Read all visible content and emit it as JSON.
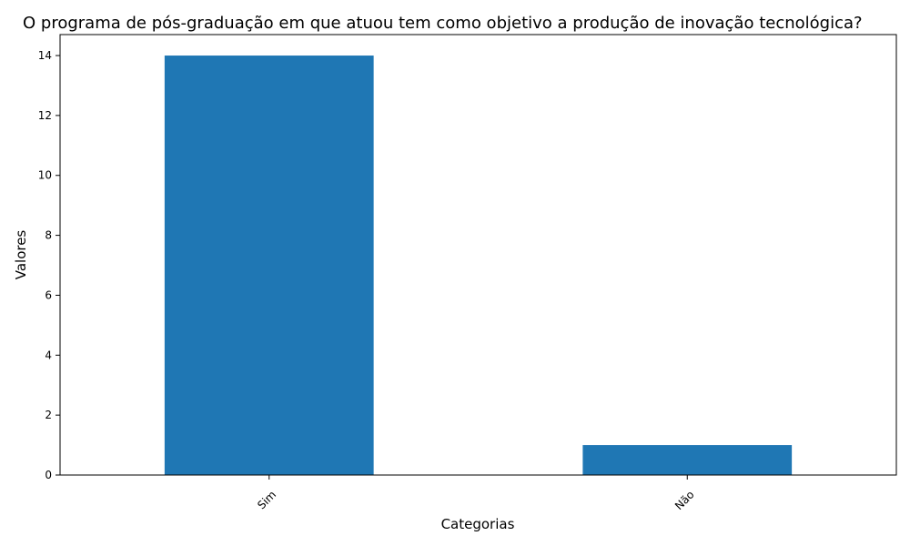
{
  "chart_data": {
    "type": "bar",
    "title": "O programa de pós-graduação em que atuou tem como objetivo a produção de inovação tecnológica?",
    "xlabel": "Categorias",
    "ylabel": "Valores",
    "categories": [
      "Sim",
      "Não"
    ],
    "values": [
      14,
      1
    ],
    "ylim": [
      0,
      14.7
    ],
    "yticks": [
      "0",
      "2",
      "4",
      "6",
      "8",
      "10",
      "12",
      "14"
    ],
    "bar_color": "#1f77b4",
    "grid": false,
    "legend": "none"
  }
}
